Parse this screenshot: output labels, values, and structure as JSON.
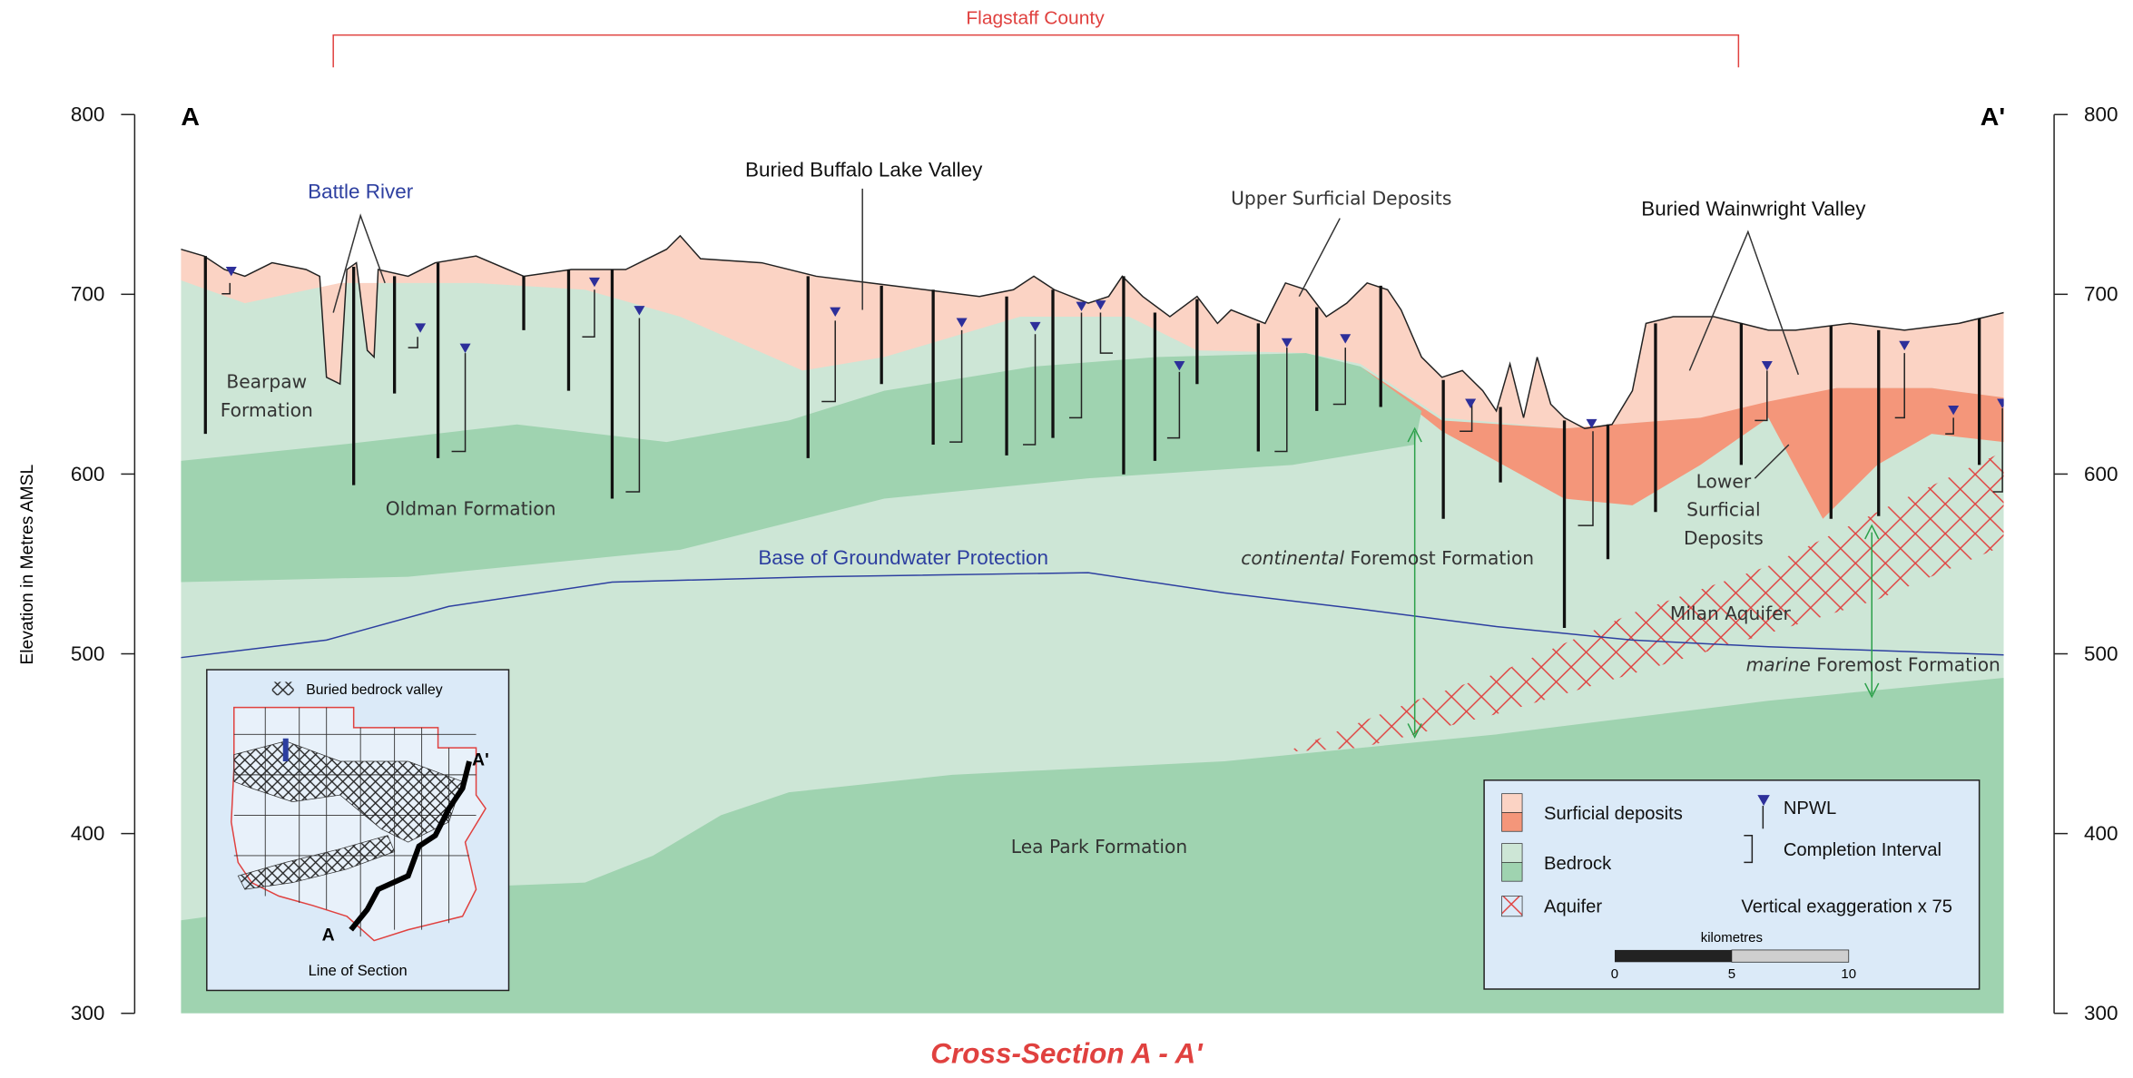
{
  "header": {
    "county": "Flagstaff County",
    "start": "A",
    "end": "A'"
  },
  "axis": {
    "label": "Elevation in Metres AMSL",
    "ticks": [
      800,
      700,
      600,
      500,
      400,
      300
    ]
  },
  "labels": {
    "battle_river": "Battle River",
    "buried_buffalo": "Buried Buffalo Lake Valley",
    "upper_surficial": "Upper Surficial Deposits",
    "buried_wainwright": "Buried Wainwright Valley",
    "bearpaw": [
      "Bearpaw",
      "Formation"
    ],
    "oldman": "Oldman Formation",
    "base_gw": "Base of Groundwater Protection",
    "continental": [
      "continental",
      "Foremost Formation"
    ],
    "lower_surficial": [
      "Lower",
      "Surficial",
      "Deposits"
    ],
    "milan": "Milan Aquifer",
    "marine": [
      "marine",
      "Foremost Formation"
    ],
    "lea_park": "Lea Park Formation"
  },
  "legend": {
    "items": [
      "Surficial deposits",
      "Bedrock",
      "Aquifer",
      "NPWL",
      "Completion Interval"
    ],
    "exaggeration": "Vertical exaggeration x 75",
    "scale_title": "kilometres",
    "scale_ticks": [
      "0",
      "5",
      "10"
    ]
  },
  "inset": {
    "legend": "Buried bedrock valley",
    "start": "A",
    "end": "A'",
    "caption": "Line of Section"
  },
  "title": "Cross-Section A - A'"
}
